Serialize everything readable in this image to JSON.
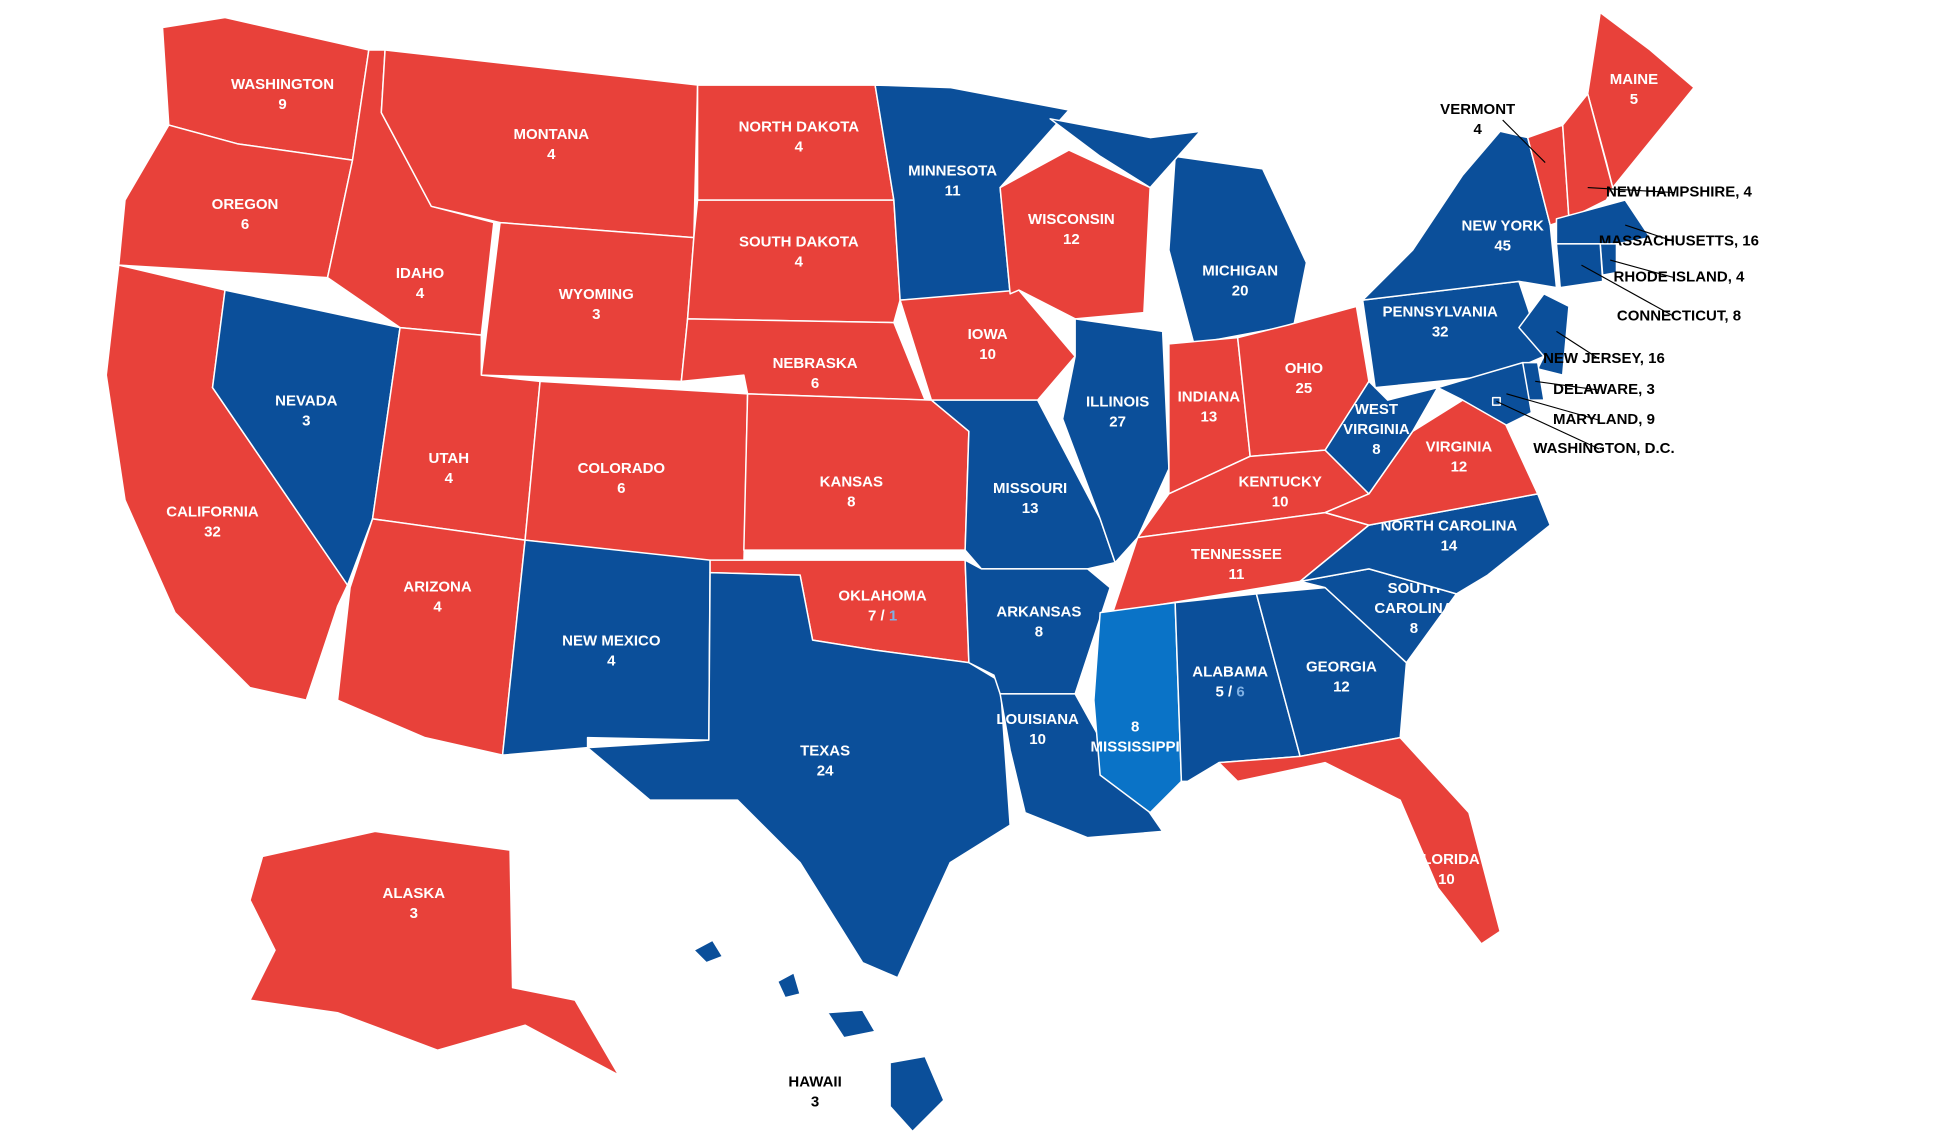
{
  "split_color": "#7fb0e3",
  "states": [
    {
      "name": "WASHINGTON",
      "votes": "9",
      "color": "#e8413a"
    },
    {
      "name": "OREGON",
      "votes": "6",
      "color": "#e8413a"
    },
    {
      "name": "CALIFORNIA",
      "votes": "32",
      "color": "#e8413a"
    },
    {
      "name": "NEVADA",
      "votes": "3",
      "color": "#0b4f9a"
    },
    {
      "name": "IDAHO",
      "votes": "4",
      "color": "#e8413a"
    },
    {
      "name": "MONTANA",
      "votes": "4",
      "color": "#e8413a"
    },
    {
      "name": "WYOMING",
      "votes": "3",
      "color": "#e8413a"
    },
    {
      "name": "UTAH",
      "votes": "4",
      "color": "#e8413a"
    },
    {
      "name": "COLORADO",
      "votes": "6",
      "color": "#e8413a"
    },
    {
      "name": "ARIZONA",
      "votes": "4",
      "color": "#e8413a"
    },
    {
      "name": "NEW MEXICO",
      "votes": "4",
      "color": "#0b4f9a"
    },
    {
      "name": "NORTH DAKOTA",
      "votes": "4",
      "color": "#e8413a"
    },
    {
      "name": "SOUTH DAKOTA",
      "votes": "4",
      "color": "#e8413a"
    },
    {
      "name": "NEBRASKA",
      "votes": "6",
      "color": "#e8413a"
    },
    {
      "name": "KANSAS",
      "votes": "8",
      "color": "#e8413a"
    },
    {
      "name": "OKLAHOMA",
      "votes": [
        "7 /",
        "1"
      ],
      "color": "#e8413a"
    },
    {
      "name": "TEXAS",
      "votes": "24",
      "color": "#0b4f9a"
    },
    {
      "name": "MINNESOTA",
      "votes": "11",
      "color": "#0b4f9a"
    },
    {
      "name": "IOWA",
      "votes": "10",
      "color": "#e8413a"
    },
    {
      "name": "MISSOURI",
      "votes": "13",
      "color": "#0b4f9a"
    },
    {
      "name": "ARKANSAS",
      "votes": "8",
      "color": "#0b4f9a"
    },
    {
      "name": "LOUISIANA",
      "votes": "10",
      "color": "#0b4f9a"
    },
    {
      "name": "WISCONSIN",
      "votes": "12",
      "color": "#e8413a"
    },
    {
      "name": "ILLINOIS",
      "votes": "27",
      "color": "#0b4f9a"
    },
    {
      "name": "MICHIGAN",
      "votes": "20",
      "color": "#0b4f9a"
    },
    {
      "name": "INDIANA",
      "votes": "13",
      "color": "#e8413a"
    },
    {
      "name": "OHIO",
      "votes": "25",
      "color": "#e8413a"
    },
    {
      "name": "KENTUCKY",
      "votes": "10",
      "color": "#e8413a"
    },
    {
      "name": "TENNESSEE",
      "votes": "11",
      "color": "#e8413a"
    },
    {
      "name": "MISSISSIPPI",
      "votes": "8",
      "color": "#0a73c7"
    },
    {
      "name": "ALABAMA",
      "votes": [
        "5 /",
        "6"
      ],
      "color": "#0b4f9a"
    },
    {
      "name": "GEORGIA",
      "votes": "12",
      "color": "#0b4f9a"
    },
    {
      "name": "SOUTH CAROLINA",
      "votes": "8",
      "color": "#0b4f9a"
    },
    {
      "name": "NORTH CAROLINA",
      "votes": "14",
      "color": "#0b4f9a"
    },
    {
      "name": "FLORIDA",
      "votes": "10",
      "color": "#e8413a"
    },
    {
      "name": "VIRGINIA",
      "votes": "12",
      "color": "#e8413a"
    },
    {
      "name": "WEST VIRGINIA",
      "votes": "8",
      "color": "#0b4f9a"
    },
    {
      "name": "PENNSYLVANIA",
      "votes": "32",
      "color": "#0b4f9a"
    },
    {
      "name": "NEW YORK",
      "votes": "45",
      "color": "#0b4f9a"
    },
    {
      "name": "MAINE",
      "votes": "5",
      "color": "#e8413a"
    },
    {
      "name": "VERMONT",
      "votes": "4",
      "color": "#e8413a"
    },
    {
      "name": "NEW HAMPSHIRE, 4",
      "color": "#e8413a"
    },
    {
      "name": "MASSACHUSETTS, 16",
      "color": "#0b4f9a"
    },
    {
      "name": "RHODE ISLAND, 4",
      "color": "#0b4f9a"
    },
    {
      "name": "CONNECTICUT, 8",
      "color": "#0b4f9a"
    },
    {
      "name": "NEW JERSEY, 16",
      "color": "#0b4f9a"
    },
    {
      "name": "DELAWARE, 3",
      "color": "#0b4f9a"
    },
    {
      "name": "MARYLAND, 9",
      "color": "#0b4f9a"
    },
    {
      "name": "WASHINGTON, D.C.",
      "color": "#0b4f9a"
    },
    {
      "name": "ALASKA",
      "votes": "3",
      "color": "#e8413a"
    },
    {
      "name": "HAWAII",
      "votes": "3",
      "color": "#0b4f9a"
    }
  ]
}
